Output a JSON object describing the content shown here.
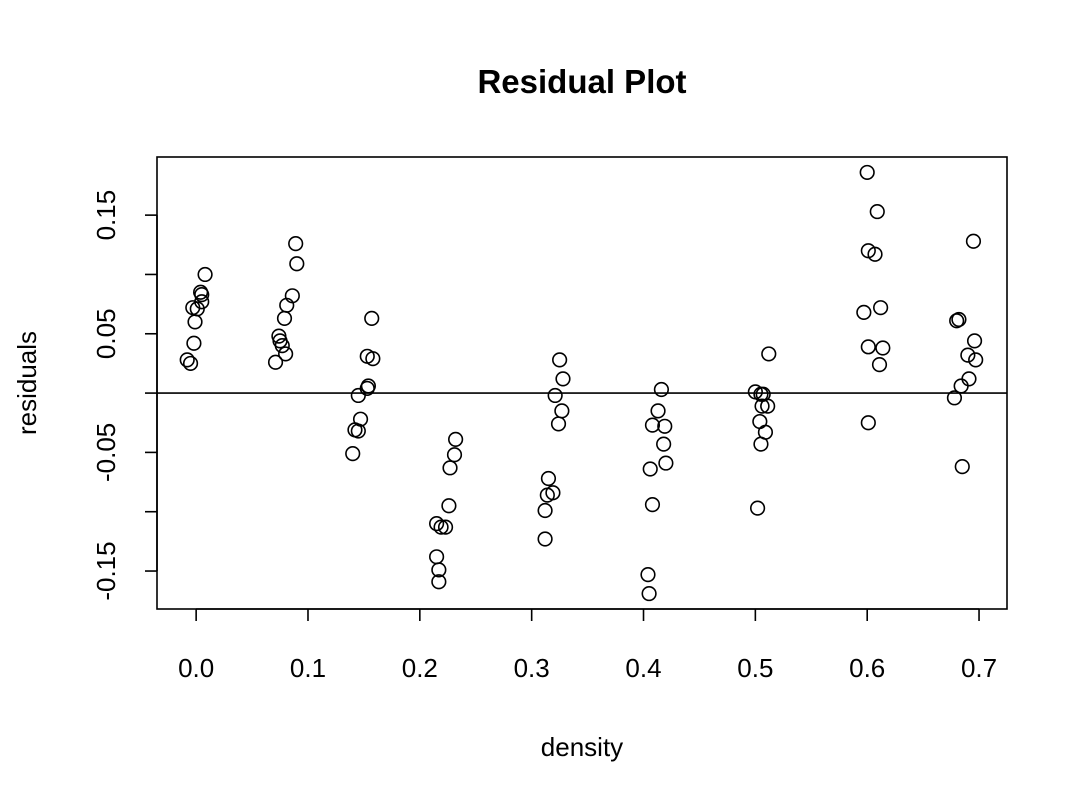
{
  "chart_data": {
    "type": "scatter",
    "title": "Residual Plot",
    "xlabel": "density",
    "ylabel": "residuals",
    "xlim": [
      -0.035,
      0.725
    ],
    "ylim": [
      -0.182,
      0.199
    ],
    "x_ticks": [
      0.0,
      0.1,
      0.2,
      0.3,
      0.4,
      0.5,
      0.6,
      0.7
    ],
    "x_tick_labels": [
      "0.0",
      "0.1",
      "0.2",
      "0.3",
      "0.4",
      "0.5",
      "0.6",
      "0.7"
    ],
    "y_ticks": [
      -0.15,
      -0.1,
      -0.05,
      0.0,
      0.05,
      0.1,
      0.15
    ],
    "y_tick_labels": [
      "-0.15",
      "",
      "-0.05",
      "",
      "0.05",
      "",
      "0.15"
    ],
    "reference_line_y": 0,
    "grid": false,
    "marker": "open circle",
    "points": [
      {
        "x": -0.008,
        "y": 0.028
      },
      {
        "x": -0.005,
        "y": 0.025
      },
      {
        "x": -0.003,
        "y": 0.072
      },
      {
        "x": -0.002,
        "y": 0.042
      },
      {
        "x": -0.001,
        "y": 0.06
      },
      {
        "x": 0.001,
        "y": 0.071
      },
      {
        "x": 0.004,
        "y": 0.085
      },
      {
        "x": 0.005,
        "y": 0.077
      },
      {
        "x": 0.005,
        "y": 0.083
      },
      {
        "x": 0.008,
        "y": 0.1
      },
      {
        "x": 0.071,
        "y": 0.026
      },
      {
        "x": 0.074,
        "y": 0.048
      },
      {
        "x": 0.075,
        "y": 0.044
      },
      {
        "x": 0.077,
        "y": 0.04
      },
      {
        "x": 0.079,
        "y": 0.063
      },
      {
        "x": 0.08,
        "y": 0.033
      },
      {
        "x": 0.081,
        "y": 0.074
      },
      {
        "x": 0.086,
        "y": 0.082
      },
      {
        "x": 0.089,
        "y": 0.126
      },
      {
        "x": 0.09,
        "y": 0.109
      },
      {
        "x": 0.14,
        "y": -0.051
      },
      {
        "x": 0.142,
        "y": -0.031
      },
      {
        "x": 0.145,
        "y": -0.032
      },
      {
        "x": 0.145,
        "y": -0.002
      },
      {
        "x": 0.147,
        "y": -0.022
      },
      {
        "x": 0.153,
        "y": 0.031
      },
      {
        "x": 0.153,
        "y": 0.004
      },
      {
        "x": 0.154,
        "y": 0.006
      },
      {
        "x": 0.157,
        "y": 0.063
      },
      {
        "x": 0.158,
        "y": 0.029
      },
      {
        "x": 0.215,
        "y": -0.11
      },
      {
        "x": 0.215,
        "y": -0.138
      },
      {
        "x": 0.217,
        "y": -0.149
      },
      {
        "x": 0.217,
        "y": -0.159
      },
      {
        "x": 0.219,
        "y": -0.113
      },
      {
        "x": 0.223,
        "y": -0.113
      },
      {
        "x": 0.226,
        "y": -0.095
      },
      {
        "x": 0.227,
        "y": -0.063
      },
      {
        "x": 0.231,
        "y": -0.052
      },
      {
        "x": 0.232,
        "y": -0.039
      },
      {
        "x": 0.312,
        "y": -0.099
      },
      {
        "x": 0.312,
        "y": -0.123
      },
      {
        "x": 0.314,
        "y": -0.086
      },
      {
        "x": 0.315,
        "y": -0.072
      },
      {
        "x": 0.319,
        "y": -0.084
      },
      {
        "x": 0.321,
        "y": -0.002
      },
      {
        "x": 0.324,
        "y": -0.026
      },
      {
        "x": 0.325,
        "y": 0.028
      },
      {
        "x": 0.327,
        "y": -0.015
      },
      {
        "x": 0.328,
        "y": 0.012
      },
      {
        "x": 0.404,
        "y": -0.153
      },
      {
        "x": 0.405,
        "y": -0.169
      },
      {
        "x": 0.406,
        "y": -0.064
      },
      {
        "x": 0.408,
        "y": -0.027
      },
      {
        "x": 0.408,
        "y": -0.094
      },
      {
        "x": 0.413,
        "y": -0.015
      },
      {
        "x": 0.416,
        "y": 0.003
      },
      {
        "x": 0.418,
        "y": -0.043
      },
      {
        "x": 0.419,
        "y": -0.028
      },
      {
        "x": 0.42,
        "y": -0.059
      },
      {
        "x": 0.5,
        "y": 0.001
      },
      {
        "x": 0.502,
        "y": -0.097
      },
      {
        "x": 0.504,
        "y": -0.024
      },
      {
        "x": 0.505,
        "y": -0.043
      },
      {
        "x": 0.505,
        "y": -0.001
      },
      {
        "x": 0.506,
        "y": -0.011
      },
      {
        "x": 0.507,
        "y": -0.001
      },
      {
        "x": 0.509,
        "y": -0.033
      },
      {
        "x": 0.511,
        "y": -0.011
      },
      {
        "x": 0.512,
        "y": 0.033
      },
      {
        "x": 0.597,
        "y": 0.068
      },
      {
        "x": 0.6,
        "y": 0.186
      },
      {
        "x": 0.601,
        "y": 0.12
      },
      {
        "x": 0.601,
        "y": -0.025
      },
      {
        "x": 0.601,
        "y": 0.039
      },
      {
        "x": 0.607,
        "y": 0.117
      },
      {
        "x": 0.609,
        "y": 0.153
      },
      {
        "x": 0.611,
        "y": 0.024
      },
      {
        "x": 0.612,
        "y": 0.072
      },
      {
        "x": 0.614,
        "y": 0.038
      },
      {
        "x": 0.678,
        "y": -0.004
      },
      {
        "x": 0.68,
        "y": 0.061
      },
      {
        "x": 0.682,
        "y": 0.062
      },
      {
        "x": 0.684,
        "y": 0.006
      },
      {
        "x": 0.685,
        "y": -0.062
      },
      {
        "x": 0.69,
        "y": 0.032
      },
      {
        "x": 0.691,
        "y": 0.012
      },
      {
        "x": 0.695,
        "y": 0.128
      },
      {
        "x": 0.696,
        "y": 0.044
      },
      {
        "x": 0.697,
        "y": 0.028
      }
    ]
  }
}
